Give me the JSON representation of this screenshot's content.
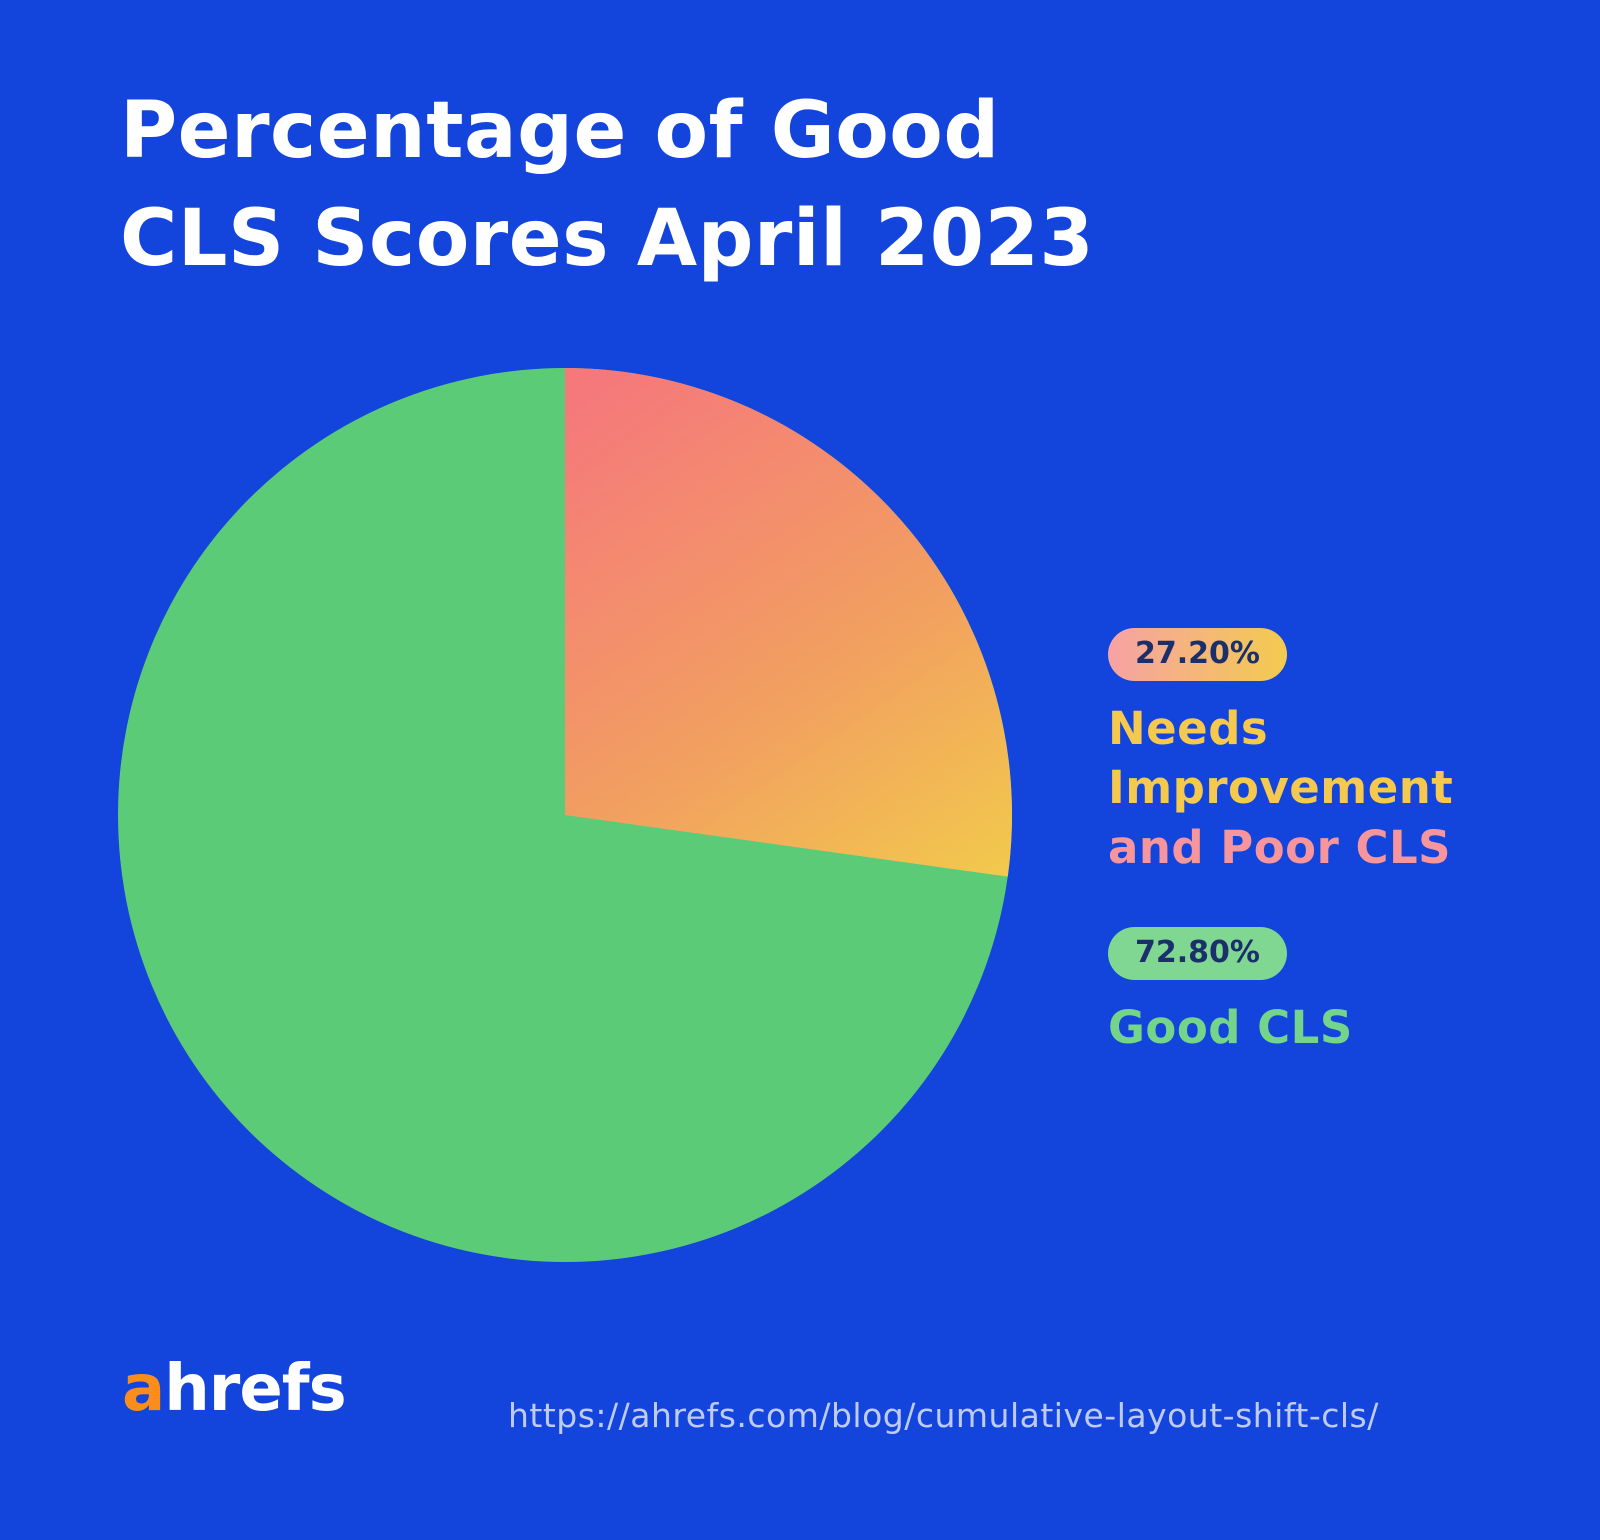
{
  "page": {
    "background_color": "#1344DB"
  },
  "title": {
    "line1": "Percentage of Good",
    "line2": "CLS Scores April 2023"
  },
  "chart_data": {
    "type": "pie",
    "title": "Percentage of Good CLS Scores April 2023",
    "start_angle_deg": 0,
    "direction": "clockwise",
    "legend_position": "right",
    "slices": [
      {
        "label": "Good CLS",
        "value": 72.8,
        "display_value": "72.80%",
        "color": "#5BCB77"
      },
      {
        "label": "Needs Improvement and Poor CLS",
        "value": 27.2,
        "display_value": "27.20%",
        "gradient": [
          "#F5797B",
          "#F29E61",
          "#F2C94C"
        ]
      }
    ]
  },
  "legend": {
    "needs": {
      "badge": "27.20%",
      "line1": "Needs",
      "line2": "Improvement",
      "line3": "and Poor CLS"
    },
    "good": {
      "badge": "72.80%",
      "label": "Good CLS"
    }
  },
  "footer": {
    "logo_a": "a",
    "logo_rest": "hrefs",
    "url": "https://ahrefs.com/blog/cumulative-layout-shift-cls/"
  },
  "colors": {
    "background": "#1344DB",
    "title_text": "#FFFFFF",
    "good_slice_green": "#5BCB77",
    "needs_slice_gradient_start": "#F5797B",
    "needs_slice_gradient_end": "#F2C94C",
    "badge_text": "#1B2F6B",
    "badge_good_bg": "#7FD792",
    "legend_yellow": "#F5C84E",
    "legend_pink": "#F6959B",
    "legend_green": "#74D58A",
    "logo_orange": "#FA8D1C",
    "url_text": "#FFFFFF"
  }
}
